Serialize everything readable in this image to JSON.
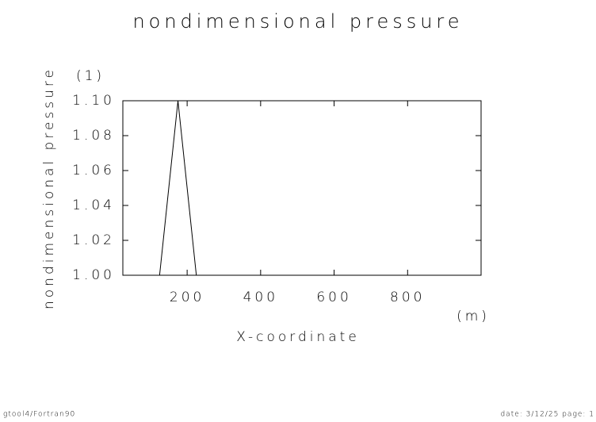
{
  "chart_data": {
    "type": "line",
    "title": "nondimensional pressure",
    "y_label": "nondimensional pressure",
    "y_unit": "(1)",
    "x_label": "X-coordinate",
    "x_unit": "(m)",
    "x": [
      25,
      75,
      125,
      175,
      225,
      275,
      325,
      375,
      425,
      475,
      525,
      575,
      625,
      675,
      725,
      775,
      825,
      875,
      925,
      975
    ],
    "series": [
      {
        "color": "#000000",
        "values": [
          1.0,
          1.0,
          1.0,
          1.1,
          1.0,
          1.0,
          1.0,
          1.0,
          1.0,
          1.0,
          1.0,
          1.0,
          1.0,
          1.0,
          1.0,
          1.0,
          1.0,
          1.0,
          1.0,
          1.0
        ]
      }
    ],
    "xlim": [
      25,
      1000
    ],
    "xticks": [
      200,
      400,
      600,
      800
    ],
    "ylim": [
      1.0,
      1.1
    ],
    "yticks": [
      {
        "value": 1.0,
        "label": "1.00"
      },
      {
        "value": 1.02,
        "label": "1.02"
      },
      {
        "value": 1.04,
        "label": "1.04"
      },
      {
        "value": 1.06,
        "label": "1.06"
      },
      {
        "value": 1.08,
        "label": "1.08"
      },
      {
        "value": 1.1,
        "label": "1.10"
      }
    ]
  },
  "footer": {
    "left": "gtool4/Fortran90",
    "right": "date: 3/12/25 page: 1"
  }
}
